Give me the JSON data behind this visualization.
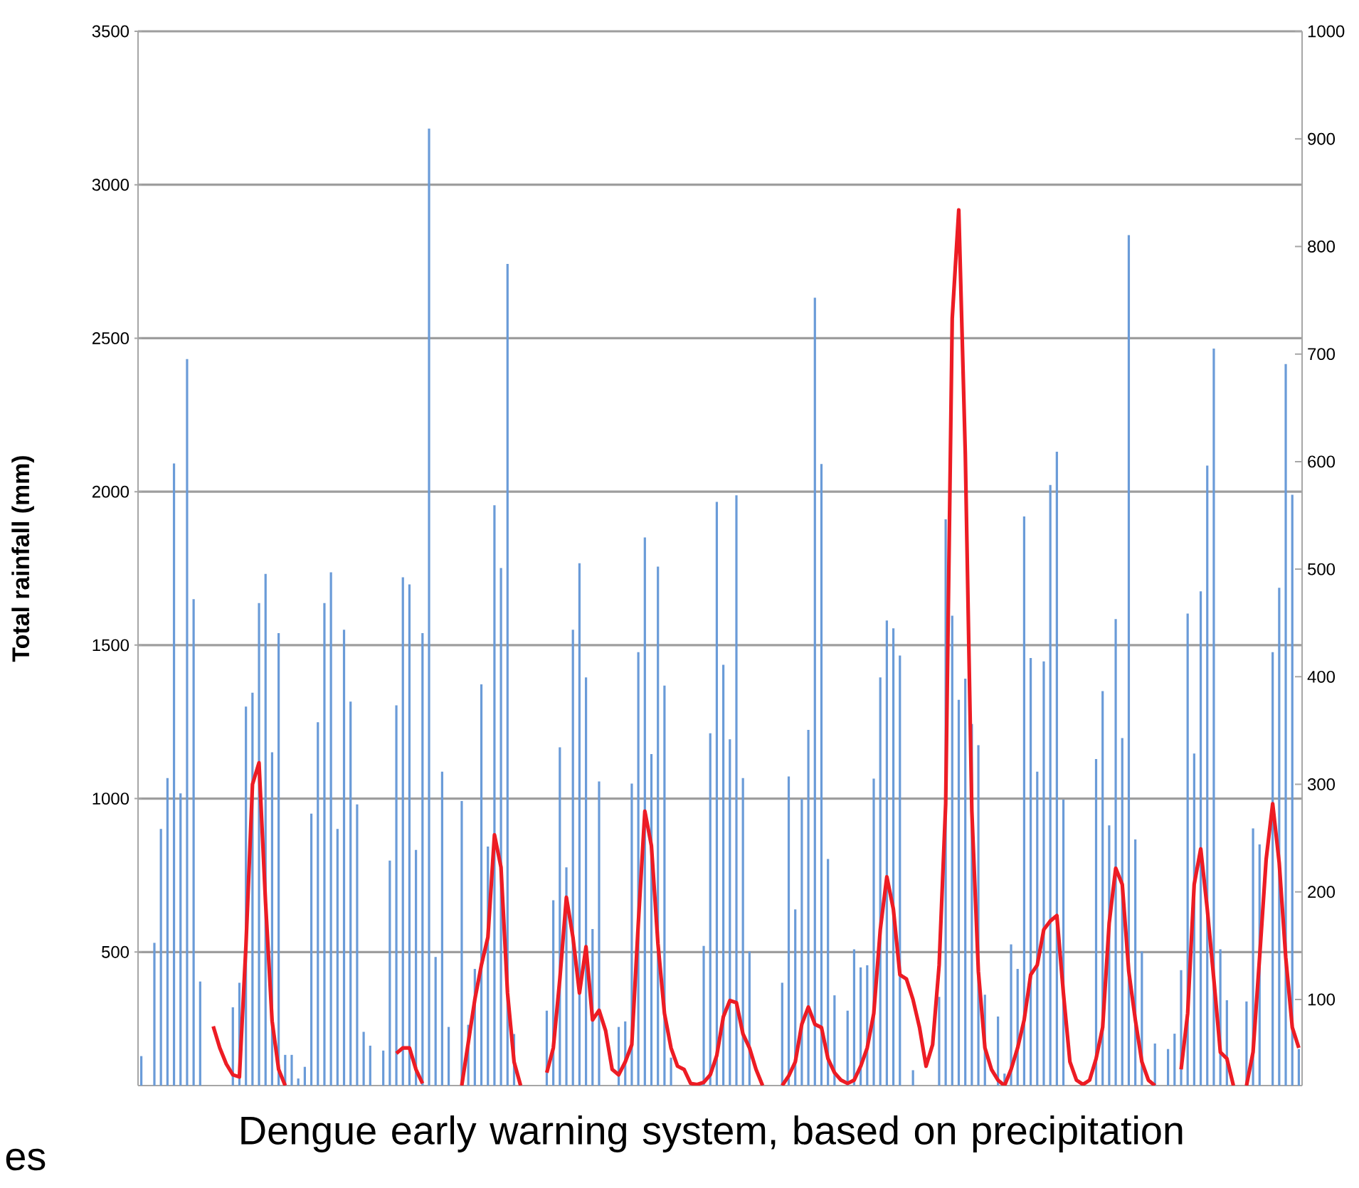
{
  "chart_data": {
    "type": "bar",
    "ylabel": "Total rainfall (mm)",
    "annotations": [
      "Dengue early warning system, based on precipitation",
      "es"
    ],
    "categories": [
      null,
      null,
      null,
      null,
      null,
      null,
      null,
      null,
      null,
      null,
      null,
      null,
      null,
      null,
      null,
      null,
      null,
      null,
      null,
      null,
      null,
      null,
      null,
      null,
      null,
      null,
      null,
      null,
      null,
      null,
      null,
      null,
      null,
      null,
      null,
      null,
      null,
      null,
      null,
      null,
      null,
      null,
      null,
      null,
      null,
      null,
      null,
      null,
      null,
      null,
      null,
      null,
      null,
      null,
      null,
      null,
      null,
      null,
      null,
      null,
      null,
      null,
      null,
      null,
      null,
      null,
      null,
      null,
      null,
      null,
      null,
      null,
      null,
      null,
      null,
      null,
      null,
      null,
      null,
      null,
      null,
      null,
      null,
      null,
      null,
      null,
      null,
      null,
      null,
      null,
      null,
      null,
      null,
      null,
      null,
      null,
      null,
      null,
      null,
      null,
      null,
      null,
      null,
      null,
      null,
      null,
      null,
      null,
      null,
      null,
      null,
      null,
      null,
      null,
      null,
      null,
      null,
      null,
      null,
      null,
      null,
      null,
      null,
      null,
      null,
      null,
      null,
      null,
      null,
      null,
      null,
      null,
      null,
      null,
      null,
      null,
      null,
      null,
      null,
      null,
      null,
      null,
      null,
      null,
      null,
      null,
      null,
      null,
      null,
      null,
      null,
      null,
      null,
      null,
      null,
      null,
      null,
      null,
      null,
      null,
      null,
      null,
      null,
      null,
      null,
      null,
      null,
      null,
      null,
      null,
      null,
      null,
      null,
      null,
      null,
      null,
      null,
      null
    ],
    "series": [
      {
        "color": "#6a9bd8",
        "values": [
          161,
          null,
          530,
          901,
          1067,
          2092,
          1017,
          2432,
          1650,
          404,
          null,
          null,
          null,
          null,
          320,
          400,
          1300,
          1345,
          1637,
          1732,
          1151,
          1539,
          165,
          165,
          88,
          126,
          951,
          1249,
          1637,
          1737,
          901,
          1550,
          1316,
          981,
          240,
          195,
          null,
          179,
          798,
          1304,
          1721,
          1698,
          833,
          1539,
          3183,
          484,
          1088,
          256,
          null,
          992,
          263,
          445,
          1372,
          844,
          1956,
          1751,
          2742,
          233,
          null,
          null,
          null,
          null,
          309,
          669,
          1167,
          776,
          1550,
          1767,
          1395,
          575,
          1056,
          null,
          null,
          256,
          274,
          1049,
          1477,
          1851,
          1145,
          1756,
          1368,
          156,
          null,
          null,
          null,
          null,
          520,
          1213,
          1967,
          1436,
          1193,
          1988,
          1067,
          502,
          null,
          null,
          null,
          null,
          400,
          1072,
          639,
          999,
          1224,
          2632,
          2090,
          803,
          359,
          null,
          309,
          509,
          450,
          457,
          1065,
          1395,
          1580,
          1555,
          1466,
          null,
          115,
          null,
          null,
          null,
          354,
          1910,
          1596,
          1322,
          1391,
          1243,
          1174,
          361,
          null,
          290,
          104,
          525,
          445,
          1919,
          1458,
          1088,
          1447,
          2022,
          2130,
          997,
          null,
          null,
          null,
          null,
          1129,
          1350,
          913,
          1585,
          1197,
          2836,
          867,
          502,
          null,
          202,
          null,
          184,
          234,
          441,
          1603,
          1147,
          1675,
          2085,
          2466,
          509,
          343,
          null,
          null,
          339,
          903,
          851,
          null,
          1477,
          1687,
          2416,
          1990,
          184
        ]
      },
      {
        "type": "line",
        "axis": "y2",
        "color": "#ed1c24",
        "values": [
          null,
          null,
          null,
          null,
          null,
          null,
          null,
          null,
          null,
          null,
          null,
          75,
          55,
          40,
          30,
          28,
          150,
          300,
          320,
          190,
          80,
          35,
          20,
          null,
          null,
          null,
          null,
          null,
          null,
          null,
          null,
          null,
          null,
          null,
          null,
          null,
          null,
          null,
          null,
          50,
          55,
          55,
          35,
          22,
          null,
          null,
          null,
          null,
          null,
          20,
          60,
          100,
          132,
          158,
          253,
          223,
          106,
          42,
          20,
          null,
          null,
          null,
          32,
          55,
          119,
          195,
          158,
          106,
          149,
          81,
          90,
          71,
          35,
          30,
          42,
          58,
          171,
          275,
          243,
          152,
          87,
          55,
          38,
          35,
          22,
          21,
          23,
          30,
          48,
          84,
          99,
          97,
          68,
          55,
          35,
          20,
          null,
          null,
          20,
          29,
          42,
          77,
          93,
          77,
          74,
          45,
          32,
          25,
          22,
          25,
          38,
          55,
          87,
          165,
          214,
          184,
          123,
          119,
          100,
          74,
          38,
          58,
          132,
          282,
          733,
          834,
          607,
          275,
          126,
          55,
          35,
          25,
          20,
          35,
          55,
          81,
          123,
          132,
          165,
          173,
          178,
          106,
          42,
          25,
          21,
          25,
          45,
          74,
          171,
          222,
          207,
          126,
          81,
          42,
          25,
          20,
          null,
          null,
          null,
          35,
          87,
          207,
          240,
          184,
          119,
          51,
          45,
          20,
          null,
          20,
          51,
          139,
          230,
          282,
          227,
          139,
          74,
          55
        ]
      }
    ],
    "ylim": [
      65,
      3500
    ],
    "yticks": [
      500,
      1000,
      1500,
      2000,
      2500,
      3000,
      3500
    ],
    "y2lim": [
      20,
      1000
    ],
    "y2ticks": [
      100,
      200,
      300,
      400,
      500,
      600,
      700,
      800,
      900,
      1000
    ],
    "grid": "y",
    "tick_labels": "y"
  }
}
